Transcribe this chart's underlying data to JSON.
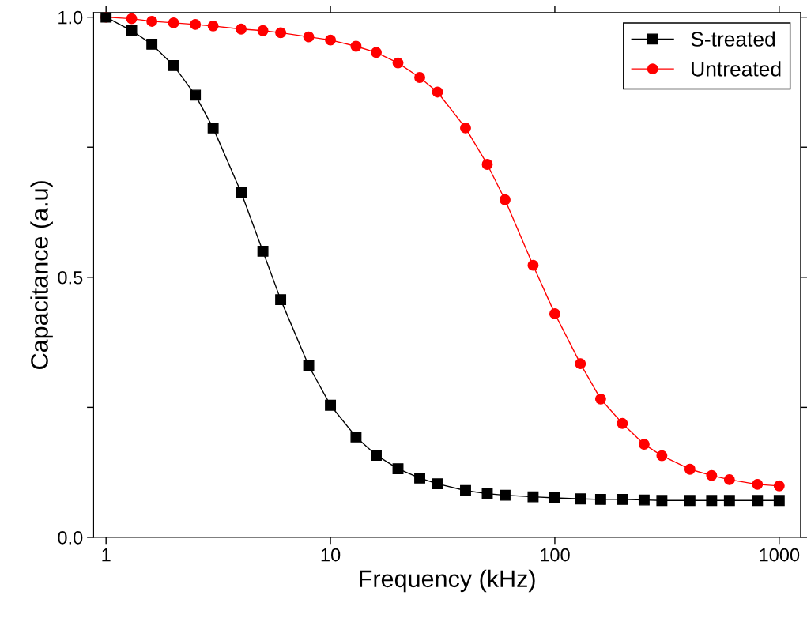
{
  "chart_data": {
    "type": "line",
    "xlabel": "Frequency (kHz)",
    "ylabel": "Capacitance (a.u)",
    "log": "x",
    "x": [
      1,
      1.3,
      1.6,
      2,
      2.5,
      3,
      4,
      5,
      6,
      8,
      10,
      13,
      16,
      20,
      25,
      30,
      40,
      50,
      60,
      80,
      100,
      130,
      160,
      200,
      250,
      300,
      400,
      500,
      600,
      800,
      1000
    ],
    "series": [
      {
        "name": "S-treated",
        "color": "#000000",
        "marker": "square",
        "values": [
          1.0,
          0.974,
          0.948,
          0.907,
          0.85,
          0.787,
          0.663,
          0.55,
          0.457,
          0.33,
          0.254,
          0.193,
          0.158,
          0.132,
          0.114,
          0.103,
          0.09,
          0.084,
          0.081,
          0.078,
          0.076,
          0.074,
          0.073,
          0.073,
          0.072,
          0.071,
          0.071,
          0.071,
          0.071,
          0.071,
          0.071
        ]
      },
      {
        "name": "Untreated",
        "color": "#ff0000",
        "marker": "circle",
        "values": [
          1.0,
          0.997,
          0.992,
          0.989,
          0.986,
          0.983,
          0.977,
          0.974,
          0.97,
          0.962,
          0.956,
          0.944,
          0.932,
          0.912,
          0.884,
          0.856,
          0.787,
          0.717,
          0.649,
          0.523,
          0.43,
          0.334,
          0.266,
          0.219,
          0.179,
          0.157,
          0.131,
          0.119,
          0.111,
          0.102,
          0.099
        ]
      }
    ],
    "xlim": [
      0.88,
      1245
    ],
    "xticks": [
      1,
      10,
      100,
      1000
    ],
    "ylim": [
      0,
      1.009
    ],
    "yticks": [
      {
        "value": 0,
        "label": "0.0"
      },
      {
        "value": 0.25,
        "label": null
      },
      0.5,
      {
        "value": 0.75,
        "label": null
      },
      {
        "value": 1,
        "label": "1.0"
      }
    ],
    "grid": false,
    "legend": "top right",
    "line_style": "solid"
  }
}
